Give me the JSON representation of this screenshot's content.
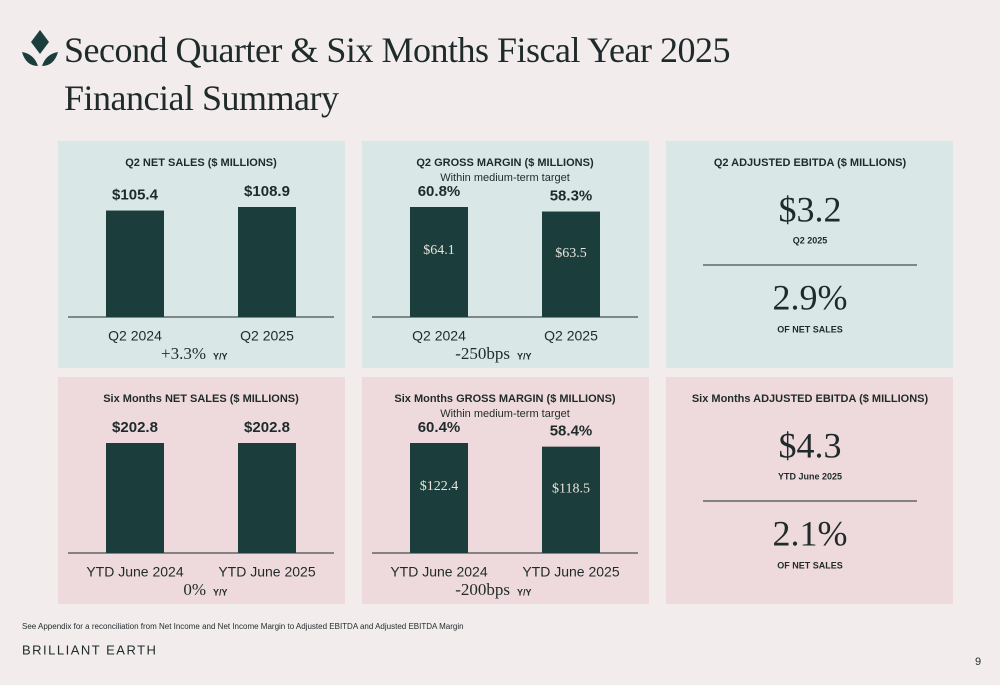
{
  "title": "Second Quarter & Six Months Fiscal Year 2025 Financial Summary",
  "chart_data": [
    {
      "type": "bar",
      "title": "Q2 NET SALES ($ MILLIONS)",
      "categories": [
        "Q2 2024",
        "Q2 2025"
      ],
      "values": [
        105.4,
        108.9
      ],
      "value_labels": [
        "$105.4",
        "$108.9"
      ],
      "color": "#1b3d3c",
      "change": "+3.3%",
      "change_unit": "Y/Y"
    },
    {
      "type": "bar",
      "title": "Q2 GROSS MARGIN ($ MILLIONS)",
      "subtitle": "Within medium-term target",
      "categories": [
        "Q2 2024",
        "Q2 2025"
      ],
      "values": [
        60.8,
        58.3
      ],
      "value_labels": [
        "60.8%",
        "58.3%"
      ],
      "inner_labels": [
        "$64.1",
        "$63.5"
      ],
      "color": "#1b3d3c",
      "change": "-250bps",
      "change_unit": "Y/Y"
    },
    {
      "type": "bar",
      "title": "Six Months NET SALES ($ MILLIONS)",
      "categories": [
        "YTD June 2024",
        "YTD June 2025"
      ],
      "values": [
        202.8,
        202.8
      ],
      "value_labels": [
        "$202.8",
        "$202.8"
      ],
      "color": "#1b3d3c",
      "change": "0%",
      "change_unit": "Y/Y"
    },
    {
      "type": "bar",
      "title": "Six Months GROSS MARGIN ($ MILLIONS)",
      "subtitle": "Within medium-term target",
      "categories": [
        "YTD June 2024",
        "YTD June 2025"
      ],
      "values": [
        60.4,
        58.4
      ],
      "value_labels": [
        "60.4%",
        "58.4%"
      ],
      "inner_labels": [
        "$122.4",
        "$118.5"
      ],
      "color": "#1b3d3c",
      "change": "-200bps",
      "change_unit": "Y/Y"
    }
  ],
  "ebitda": [
    {
      "title": "Q2 ADJUSTED EBITDA  ($ MILLIONS)",
      "value": "$3.2",
      "value_caption": "Q2 2025",
      "margin": "2.9%",
      "margin_caption": "OF NET SALES"
    },
    {
      "title": "Six Months ADJUSTED EBITDA  ($ MILLIONS)",
      "value": "$4.3",
      "value_caption": "YTD June 2025",
      "margin": "2.1%",
      "margin_caption": "OF NET SALES"
    }
  ],
  "footnote": "See Appendix for a reconciliation from Net Income and Net Income Margin to Adjusted EBITDA and Adjusted EBITDA Margin",
  "brand": "BRILLIANT EARTH",
  "page_number": "9"
}
